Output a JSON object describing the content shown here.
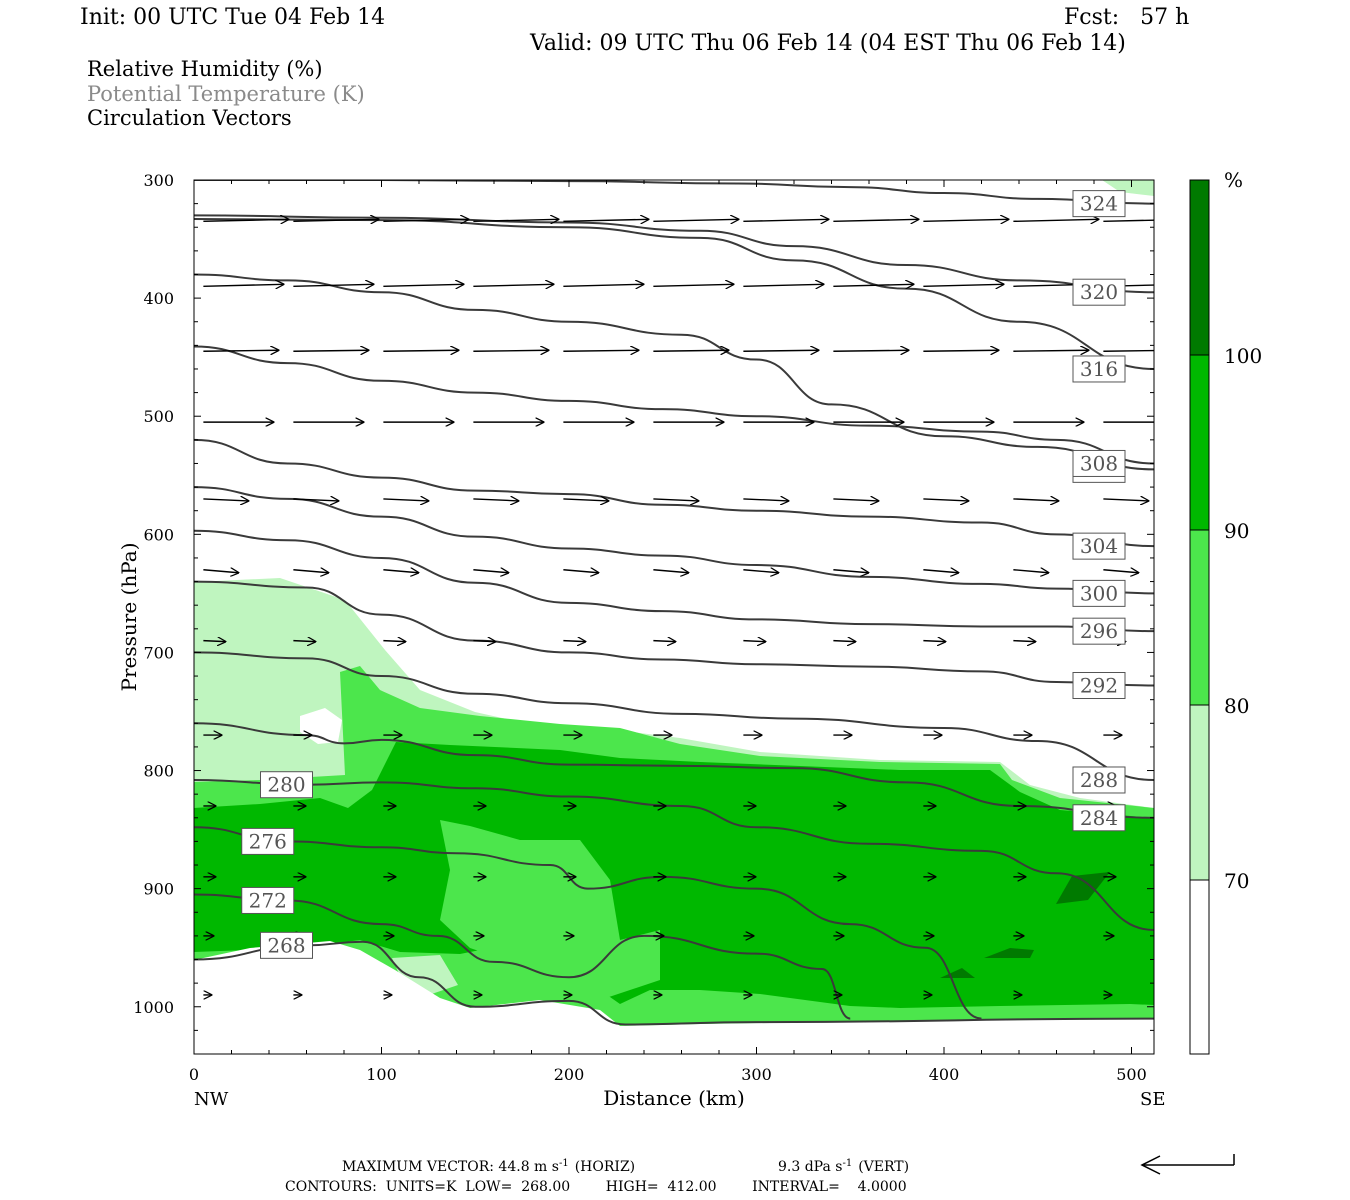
{
  "header": {
    "init": "Init: 00 UTC Tue 04 Feb 14",
    "fcst": "Fcst:   57 h",
    "valid": "Valid: 09 UTC Thu 06 Feb 14 (04 EST Thu 06 Feb 14)"
  },
  "legend_items": [
    "Relative Humidity (%)",
    "Potential Temperature (K)",
    "Circulation Vectors"
  ],
  "chart_data": {
    "type": "cross-section",
    "xlabel": "Distance (km)",
    "ylabel": "Pressure (hPa)",
    "xlim": [
      0,
      512
    ],
    "ylim": [
      1040,
      300
    ],
    "x_ticks": [
      "0",
      "100",
      "200",
      "300",
      "400",
      "500"
    ],
    "x_tick_values": [
      0,
      100,
      200,
      300,
      400,
      500
    ],
    "y_ticks": [
      "300",
      "400",
      "500",
      "600",
      "700",
      "800",
      "900",
      "1000"
    ],
    "y_tick_values": [
      300,
      400,
      500,
      600,
      700,
      800,
      900,
      1000
    ],
    "left_end_label": "NW",
    "right_end_label": "SE",
    "colorbar": {
      "unit": "%",
      "levels": [
        "70",
        "80",
        "90",
        "100"
      ],
      "colors": [
        "#ffffff",
        "#bff5bf",
        "#4ce64c",
        "#00b800",
        "#007a00"
      ]
    },
    "theta_contours": [
      {
        "label": "324",
        "points": [
          [
            0,
            300
          ],
          [
            100,
            300
          ],
          [
            200,
            301
          ],
          [
            290,
            303
          ],
          [
            350,
            306
          ],
          [
            400,
            311
          ],
          [
            450,
            316
          ],
          [
            512,
            320
          ]
        ]
      },
      {
        "label": "320",
        "points": [
          [
            0,
            330
          ],
          [
            100,
            332
          ],
          [
            200,
            336
          ],
          [
            270,
            343
          ],
          [
            320,
            356
          ],
          [
            380,
            372
          ],
          [
            440,
            385
          ],
          [
            512,
            395
          ]
        ]
      },
      {
        "label": "316",
        "points": [
          [
            0,
            333
          ],
          [
            100,
            334
          ],
          [
            200,
            340
          ],
          [
            270,
            349
          ],
          [
            320,
            368
          ],
          [
            380,
            392
          ],
          [
            440,
            420
          ],
          [
            512,
            460
          ]
        ]
      },
      {
        "label": "312",
        "points": [
          [
            0,
            380
          ],
          [
            50,
            385
          ],
          [
            100,
            395
          ],
          [
            150,
            410
          ],
          [
            200,
            420
          ],
          [
            260,
            431
          ],
          [
            300,
            452
          ],
          [
            340,
            490
          ],
          [
            400,
            517
          ],
          [
            450,
            526
          ],
          [
            512,
            545
          ]
        ]
      },
      {
        "label": "308",
        "points": [
          [
            0,
            441
          ],
          [
            50,
            455
          ],
          [
            100,
            470
          ],
          [
            150,
            480
          ],
          [
            200,
            487
          ],
          [
            250,
            494
          ],
          [
            300,
            500
          ],
          [
            360,
            508
          ],
          [
            420,
            513
          ],
          [
            460,
            520
          ],
          [
            512,
            540
          ]
        ]
      },
      {
        "label": "304",
        "points": [
          [
            0,
            520
          ],
          [
            50,
            540
          ],
          [
            100,
            552
          ],
          [
            150,
            563
          ],
          [
            200,
            566
          ],
          [
            250,
            575
          ],
          [
            300,
            580
          ],
          [
            360,
            585
          ],
          [
            420,
            590
          ],
          [
            460,
            600
          ],
          [
            512,
            610
          ]
        ]
      },
      {
        "label": "300",
        "points": [
          [
            0,
            560
          ],
          [
            50,
            570
          ],
          [
            100,
            585
          ],
          [
            150,
            602
          ],
          [
            200,
            612
          ],
          [
            250,
            618
          ],
          [
            300,
            626
          ],
          [
            360,
            636
          ],
          [
            420,
            642
          ],
          [
            460,
            646
          ],
          [
            512,
            650
          ]
        ]
      },
      {
        "label": "296",
        "points": [
          [
            0,
            597
          ],
          [
            50,
            605
          ],
          [
            100,
            620
          ],
          [
            150,
            641
          ],
          [
            200,
            658
          ],
          [
            250,
            665
          ],
          [
            300,
            672
          ],
          [
            360,
            676
          ],
          [
            420,
            678
          ],
          [
            460,
            678
          ],
          [
            512,
            682
          ]
        ]
      },
      {
        "label": "292",
        "points": [
          [
            0,
            640
          ],
          [
            60,
            645
          ],
          [
            100,
            668
          ],
          [
            150,
            690
          ],
          [
            200,
            700
          ],
          [
            250,
            706
          ],
          [
            300,
            710
          ],
          [
            360,
            712
          ],
          [
            420,
            716
          ],
          [
            460,
            725
          ],
          [
            512,
            728
          ]
        ]
      },
      {
        "label": "288",
        "points": [
          [
            0,
            700
          ],
          [
            60,
            705
          ],
          [
            100,
            720
          ],
          [
            150,
            735
          ],
          [
            200,
            743
          ],
          [
            260,
            752
          ],
          [
            320,
            756
          ],
          [
            400,
            764
          ],
          [
            450,
            775
          ],
          [
            512,
            808
          ]
        ]
      },
      {
        "label": "284",
        "points": [
          [
            0,
            760
          ],
          [
            60,
            770
          ],
          [
            80,
            777
          ],
          [
            100,
            774
          ],
          [
            150,
            787
          ],
          [
            200,
            795
          ],
          [
            260,
            796
          ],
          [
            320,
            798
          ],
          [
            380,
            810
          ],
          [
            440,
            830
          ],
          [
            512,
            840
          ]
        ]
      },
      {
        "label": "280",
        "points": [
          [
            0,
            808
          ],
          [
            60,
            812
          ],
          [
            100,
            810
          ],
          [
            150,
            815
          ],
          [
            200,
            822
          ],
          [
            260,
            830
          ],
          [
            300,
            848
          ],
          [
            360,
            862
          ],
          [
            420,
            868
          ],
          [
            460,
            887
          ],
          [
            512,
            935
          ]
        ]
      },
      {
        "label": "276",
        "points": [
          [
            0,
            848
          ],
          [
            50,
            860
          ],
          [
            100,
            865
          ],
          [
            140,
            870
          ],
          [
            190,
            880
          ],
          [
            210,
            900
          ],
          [
            250,
            890
          ],
          [
            300,
            900
          ],
          [
            350,
            930
          ],
          [
            390,
            950
          ],
          [
            420,
            1010
          ]
        ]
      },
      {
        "label": "272",
        "points": [
          [
            0,
            905
          ],
          [
            50,
            910
          ],
          [
            100,
            930
          ],
          [
            130,
            940
          ],
          [
            160,
            962
          ],
          [
            200,
            975
          ],
          [
            240,
            940
          ],
          [
            300,
            955
          ],
          [
            335,
            968
          ],
          [
            350,
            1010
          ]
        ]
      },
      {
        "label": "268",
        "points": [
          [
            0,
            960
          ],
          [
            60,
            948
          ],
          [
            90,
            945
          ],
          [
            120,
            975
          ],
          [
            150,
            1000
          ],
          [
            200,
            995
          ],
          [
            230,
            1015
          ],
          [
            300,
            1013
          ],
          [
            512,
            1010
          ]
        ]
      }
    ],
    "max_vector": "MAXIMUM VECTOR:  44.8 m s",
    "max_vector_horiz": "(HORIZ)",
    "max_vector_vert": "9.3 dPa s",
    "max_vector_vert_unit": "(VERT)",
    "contour_info": "CONTOURS:  UNITS=K  LOW=  268.00        HIGH=  412.00        INTERVAL=    4.0000"
  }
}
